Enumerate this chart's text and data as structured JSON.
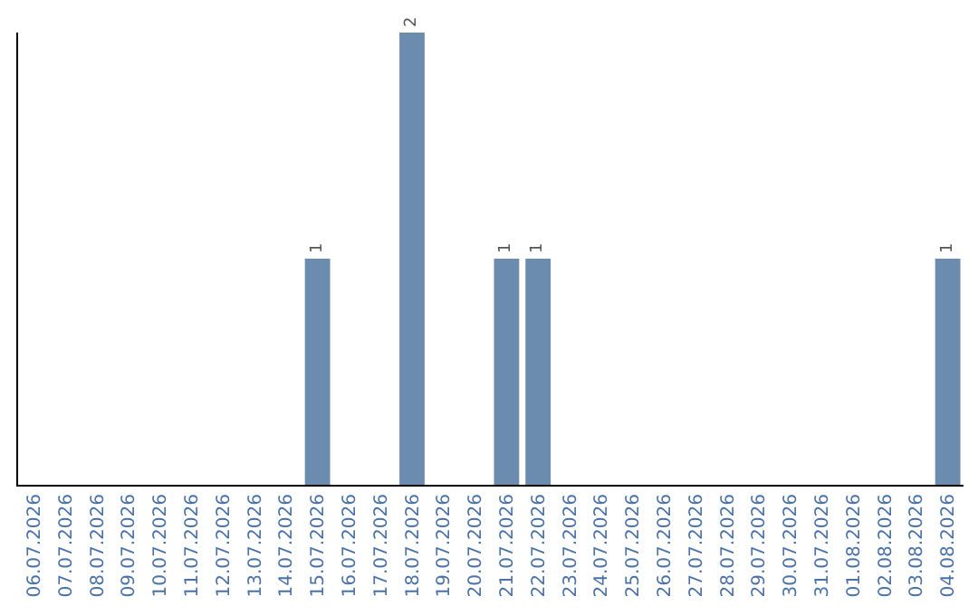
{
  "chart_data": {
    "type": "bar",
    "categories": [
      "06.07.2026",
      "07.07.2026",
      "08.07.2026",
      "09.07.2026",
      "10.07.2026",
      "11.07.2026",
      "12.07.2026",
      "13.07.2026",
      "14.07.2026",
      "15.07.2026",
      "16.07.2026",
      "17.07.2026",
      "18.07.2026",
      "19.07.2026",
      "20.07.2026",
      "21.07.2026",
      "22.07.2026",
      "23.07.2026",
      "24.07.2026",
      "25.07.2026",
      "26.07.2026",
      "27.07.2026",
      "28.07.2026",
      "29.07.2026",
      "30.07.2026",
      "31.07.2026",
      "01.08.2026",
      "02.08.2026",
      "03.08.2026",
      "04.08.2026"
    ],
    "values": [
      0,
      0,
      0,
      0,
      0,
      0,
      0,
      0,
      0,
      1,
      0,
      0,
      2,
      0,
      0,
      1,
      1,
      0,
      0,
      0,
      0,
      0,
      0,
      0,
      0,
      0,
      0,
      0,
      0,
      1
    ],
    "value_labels": [
      null,
      null,
      null,
      null,
      null,
      null,
      null,
      null,
      null,
      "1",
      null,
      null,
      "2",
      null,
      null,
      "1",
      "1",
      null,
      null,
      null,
      null,
      null,
      null,
      null,
      null,
      null,
      null,
      null,
      null,
      "1"
    ],
    "color": "#6b8cae",
    "ylim": [
      0,
      2
    ],
    "tick_labels": "x",
    "legend": false
  }
}
